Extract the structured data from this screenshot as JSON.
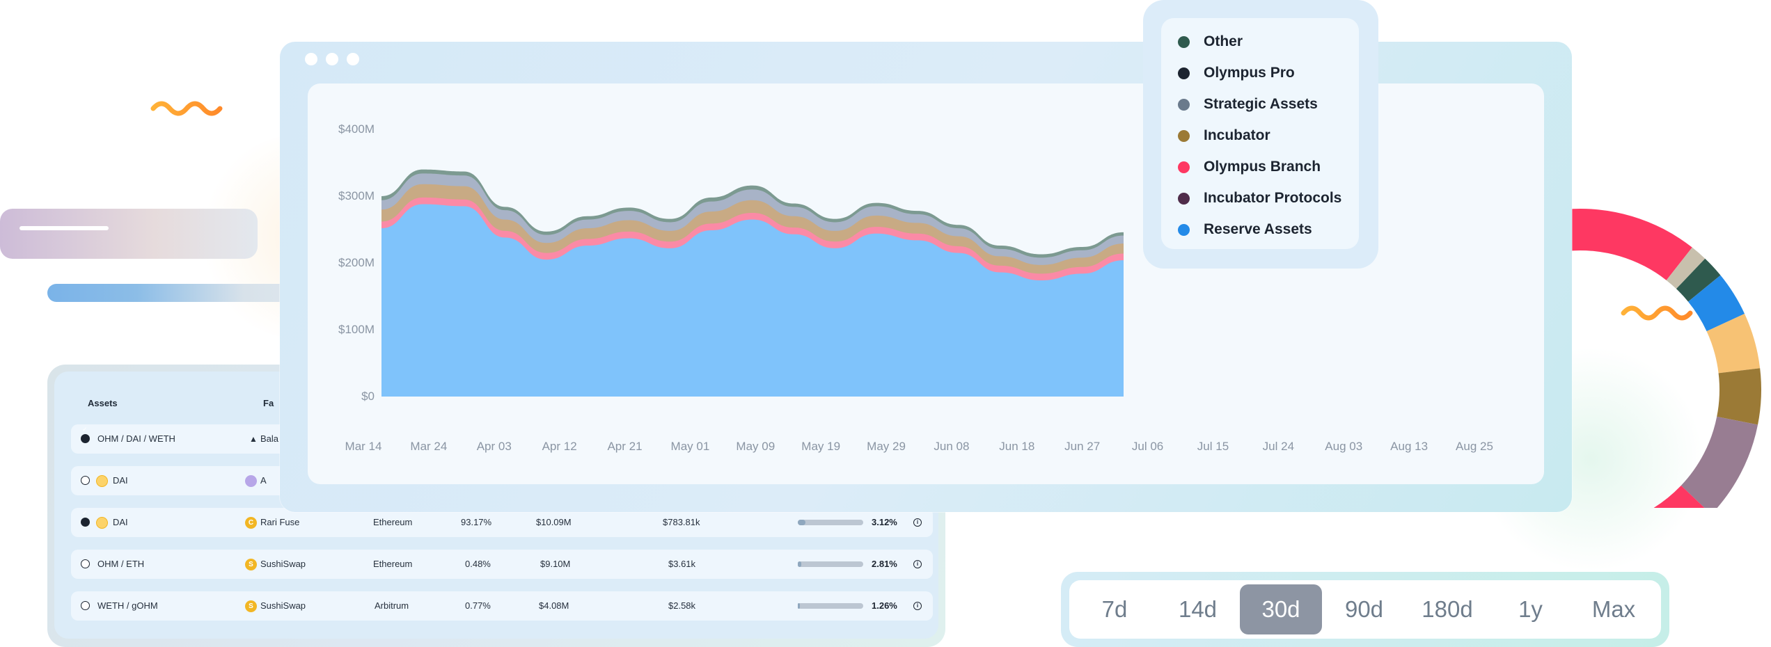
{
  "table": {
    "headers": {
      "assets": "Assets",
      "facility": "Fa"
    },
    "rows": [
      {
        "selected": true,
        "pair": "OHM / DAI / WETH",
        "facility": "Bala",
        "chain": "",
        "tvl_share": "",
        "tvl": "",
        "rewards": "",
        "apy_progress": null,
        "apy": ""
      },
      {
        "selected": false,
        "pair": "DAI",
        "facility": "A",
        "chain": "",
        "tvl_share": "",
        "tvl": "",
        "rewards": "",
        "apy_progress": null,
        "apy": ""
      },
      {
        "selected": true,
        "pair": "DAI",
        "facility": "Rari Fuse",
        "chain": "Ethereum",
        "tvl_share": "93.17%",
        "tvl": "$10.09M",
        "rewards": "$783.81k",
        "apy_progress": 0.12,
        "apy": "3.12%"
      },
      {
        "selected": false,
        "pair": "OHM / ETH",
        "facility": "SushiSwap",
        "chain": "Ethereum",
        "tvl_share": "0.48%",
        "tvl": "$9.10M",
        "rewards": "$3.61k",
        "apy_progress": 0.05,
        "apy": "2.81%"
      },
      {
        "selected": false,
        "pair": "WETH / gOHM",
        "facility": "SushiSwap",
        "chain": "Arbitrum",
        "tvl_share": "0.77%",
        "tvl": "$4.08M",
        "rewards": "$2.58k",
        "apy_progress": 0.03,
        "apy": "1.26%"
      }
    ]
  },
  "time_range": {
    "options": [
      "7d",
      "14d",
      "30d",
      "90d",
      "180d",
      "1y",
      "Max"
    ],
    "selected": "30d"
  },
  "chart_data": [
    {
      "type": "area",
      "stacked": true,
      "title": "",
      "xlabel": "",
      "ylabel": "",
      "ylim": [
        0,
        400
      ],
      "y_unit": "$M",
      "yticks": [
        "$0",
        "$100M",
        "$200M",
        "$300M",
        "$400M"
      ],
      "x_tick_labels": [
        "Mar 14",
        "Mar 24",
        "Apr 03",
        "Apr 12",
        "Apr 21",
        "May 01",
        "May 09",
        "May 19",
        "May 29",
        "Jun 08",
        "Jun 18",
        "Jun 27",
        "Jul 06",
        "Jul 15",
        "Jul 24",
        "Aug 03",
        "Aug 13",
        "Aug 25"
      ],
      "grid": false,
      "legend_position": "top-right",
      "series": [
        {
          "name": "Reserve Assets",
          "color": "#7fc3fb",
          "values": [
            252,
            288,
            285,
            238,
            205,
            226,
            237,
            222,
            249,
            265,
            243,
            222,
            244,
            234,
            215,
            186,
            174,
            184,
            204
          ]
        },
        {
          "name": "Incubator Protocols",
          "color": "#4f2c4a",
          "values": [
            0,
            0,
            0,
            0,
            0,
            0,
            0,
            0,
            0,
            0,
            0,
            0,
            0,
            0,
            0,
            0,
            0,
            0,
            0
          ]
        },
        {
          "name": "Olympus Branch",
          "color": "#fb8aa6",
          "values": [
            10,
            10,
            10,
            10,
            10,
            10,
            10,
            10,
            10,
            10,
            10,
            10,
            10,
            10,
            10,
            10,
            10,
            10,
            10
          ]
        },
        {
          "name": "Incubator",
          "color": "#c8aa84",
          "values": [
            18,
            20,
            20,
            17,
            15,
            16,
            17,
            16,
            18,
            19,
            17,
            16,
            17,
            16,
            15,
            14,
            13,
            14,
            15
          ]
        },
        {
          "name": "Strategic Assets",
          "color": "#a8b3c7",
          "values": [
            14,
            16,
            16,
            14,
            12,
            13,
            14,
            13,
            15,
            16,
            14,
            13,
            14,
            13,
            12,
            11,
            11,
            11,
            12
          ]
        },
        {
          "name": "Olympus Pro",
          "color": "#1c2430",
          "values": [
            0,
            0,
            0,
            0,
            0,
            0,
            0,
            0,
            0,
            0,
            0,
            0,
            0,
            0,
            0,
            0,
            0,
            0,
            0
          ]
        },
        {
          "name": "Other",
          "color": "#7c9a91",
          "values": [
            6,
            6,
            6,
            5,
            5,
            5,
            5,
            5,
            6,
            6,
            5,
            5,
            5,
            5,
            5,
            5,
            5,
            5,
            5
          ]
        }
      ]
    },
    {
      "type": "pie",
      "title": "",
      "donut": true,
      "labels_visible": false,
      "series": [
        {
          "name": "Olympus Branch",
          "color": "#fe3862",
          "value": 12
        },
        {
          "name": "segment-2",
          "color": "#c8c0ad",
          "value": 1.5
        },
        {
          "name": "Other",
          "color": "#2f5a4e",
          "value": 2
        },
        {
          "name": "Reserve Assets",
          "color": "#238ae8",
          "value": 4
        },
        {
          "name": "segment-5",
          "color": "#f7c274",
          "value": 5
        },
        {
          "name": "Incubator",
          "color": "#9b7a36",
          "value": 5
        },
        {
          "name": "Strategic Assets",
          "color": "#987d92",
          "value": 9
        },
        {
          "name": "segment-8",
          "color": "#fe3862",
          "value": 8
        },
        {
          "name": "segment-9",
          "color": "#a06a6b",
          "value": 16
        },
        {
          "name": "Incubator Protocols",
          "color": "#4f2c4a",
          "value": 10
        },
        {
          "name": "hidden",
          "color": "#ffffff",
          "value": 27.5
        }
      ]
    }
  ],
  "legend": [
    {
      "name": "Other",
      "color": "#2f5a4e"
    },
    {
      "name": "Olympus Pro",
      "color": "#1c2430"
    },
    {
      "name": "Strategic Assets",
      "color": "#6a7a8c"
    },
    {
      "name": "Incubator",
      "color": "#9b7a36"
    },
    {
      "name": "Olympus Branch",
      "color": "#fe3862"
    },
    {
      "name": "Incubator Protocols",
      "color": "#4f2c4a"
    },
    {
      "name": "Reserve Assets",
      "color": "#238ae8"
    }
  ]
}
